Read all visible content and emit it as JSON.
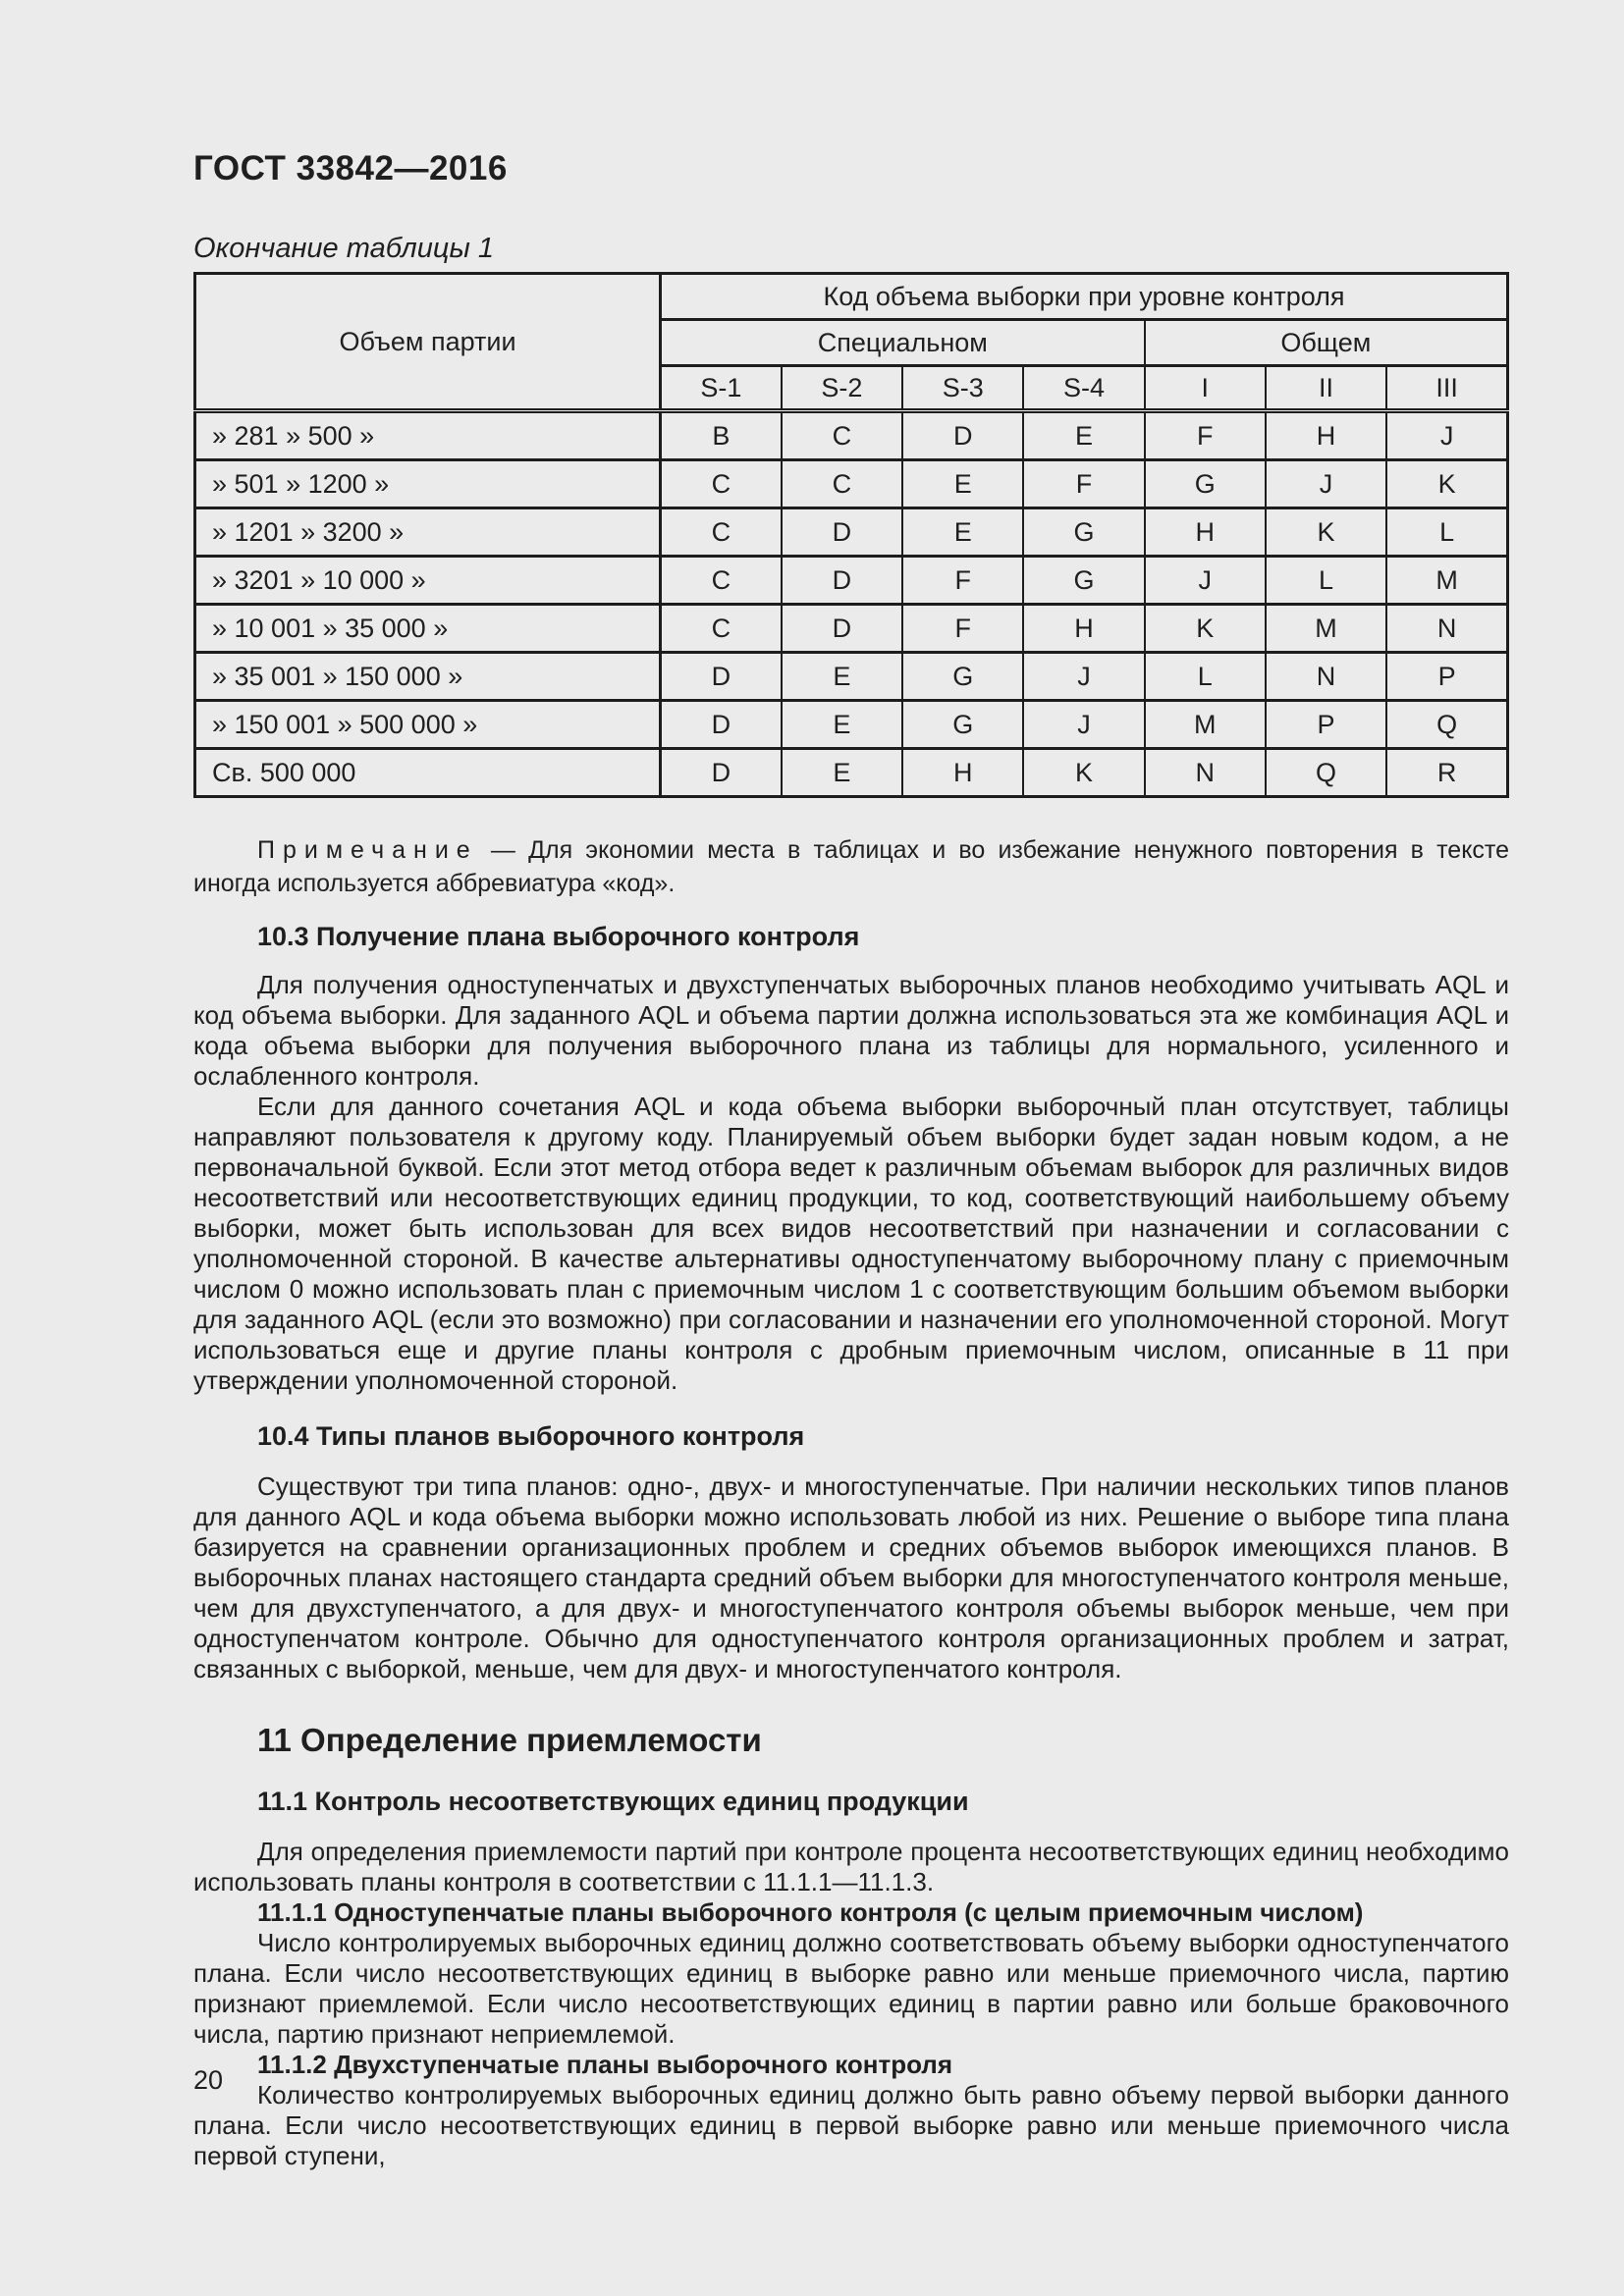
{
  "theme": {
    "page_bg": "#ebebeb",
    "ink": "#1f1f1f",
    "border": "#1d1d1d"
  },
  "page": {
    "header_title": "ГОСТ 33842—2016",
    "table_caption": "Окончание таблицы 1",
    "page_number": "20"
  },
  "table": {
    "col_header_lot": "Объем партии",
    "col_header_code": "Код объема выборки при уровне контроля",
    "group_special": "Специальном",
    "group_general": "Общем",
    "levels": [
      "S-1",
      "S-2",
      "S-3",
      "S-4",
      "I",
      "II",
      "III"
    ],
    "rows": [
      {
        "label": "» 281 » 500 »",
        "codes": [
          "B",
          "C",
          "D",
          "E",
          "F",
          "H",
          "J"
        ]
      },
      {
        "label": "» 501 » 1200 »",
        "codes": [
          "C",
          "C",
          "E",
          "F",
          "G",
          "J",
          "K"
        ]
      },
      {
        "label": "» 1201 » 3200 »",
        "codes": [
          "C",
          "D",
          "E",
          "G",
          "H",
          "K",
          "L"
        ]
      },
      {
        "label": "» 3201 » 10 000 »",
        "codes": [
          "C",
          "D",
          "F",
          "G",
          "J",
          "L",
          "M"
        ]
      },
      {
        "label": "» 10 001 » 35 000 »",
        "codes": [
          "C",
          "D",
          "F",
          "H",
          "K",
          "M",
          "N"
        ]
      },
      {
        "label": "» 35 001 » 150 000 »",
        "codes": [
          "D",
          "E",
          "G",
          "J",
          "L",
          "N",
          "P"
        ]
      },
      {
        "label": "» 150 001 » 500 000 »",
        "codes": [
          "D",
          "E",
          "G",
          "J",
          "M",
          "P",
          "Q"
        ]
      },
      {
        "label": "Св. 500 000",
        "codes": [
          "D",
          "E",
          "H",
          "K",
          "N",
          "Q",
          "R"
        ]
      }
    ],
    "note_label": "Примечание",
    "note_text": "—  Для экономии места в таблицах и во избежание ненужного повторения в тексте иногда используется аббревиатура «код»."
  },
  "sections": {
    "s103": {
      "heading": "10.3 Получение плана выборочного контроля",
      "p1": "Для получения одноступенчатых и двухступенчатых выборочных планов необходимо учитывать AQL и код объема выборки. Для заданного AQL и объема партии должна использоваться эта же комбинация AQL и кода объема выборки для получения выборочного плана из таблицы для нормального, усиленного и ослабленного контроля.",
      "p2": "Если для данного сочетания AQL и кода объема выборки выборочный план отсутствует, таблицы направляют пользователя к другому коду. Планируемый объем выборки будет задан новым кодом, а не первоначальной буквой. Если этот метод отбора ведет к различным объемам выборок для различных видов несоответствий или несоответствующих единиц продукции, то код, соответствующий наибольшему объему выборки, может быть использован для всех видов несоответствий при назначении и согласовании с уполномоченной стороной. В качестве альтернативы одноступенчатому выборочному плану с приемочным числом 0 можно использовать план с приемочным числом 1 с соответствующим большим объемом выборки для заданного AQL (если это возможно) при согласовании и назначении его уполномоченной стороной. Могут использоваться еще и другие планы контроля с дробным приемочным числом, описанные в 11 при утверждении уполномоченной стороной."
    },
    "s104": {
      "heading": "10.4 Типы планов выборочного контроля",
      "p1": "Существуют три типа планов: одно-, двух- и многоступенчатые. При наличии нескольких типов планов для данного AQL и кода объема выборки можно использовать любой из них. Решение о выборе типа плана базируется на сравнении организационных проблем и средних объемов выборок имеющихся планов. В выборочных планах настоящего стандарта средний объем выборки для многоступенчатого контроля меньше, чем для двухступенчатого, а для двух- и многоступенчатого контроля объемы выборок меньше, чем при одноступенчатом контроле. Обычно для одноступенчатого контроля организационных проблем и затрат, связанных с выборкой, меньше, чем для двух- и многоступенчатого контроля."
    },
    "ch11": {
      "heading": "11 Определение приемлемости"
    },
    "s111": {
      "heading": "11.1 Контроль несоответствующих единиц продукции",
      "p1": "Для определения приемлемости партий при контроле процента несоответствующих единиц необходимо использовать планы контроля в соответствии с 11.1.1—11.1.3."
    },
    "s1111": {
      "heading": "11.1.1 Одноступенчатые планы выборочного контроля (с целым приемочным числом)",
      "p1": "Число контролируемых выборочных единиц должно соответствовать объему выборки одноступенчатого плана. Если число несоответствующих единиц в выборке равно или меньше приемочного числа, партию признают приемлемой. Если число несоответствующих единиц в партии равно или больше браковочного числа, партию признают неприемлемой."
    },
    "s1112": {
      "heading": "11.1.2 Двухступенчатые планы выборочного контроля",
      "p1": "Количество контролируемых выборочных единиц должно быть равно объему первой выборки данного плана. Если число несоответствующих единиц в первой выборке равно или меньше приемочного числа первой ступени,"
    }
  }
}
